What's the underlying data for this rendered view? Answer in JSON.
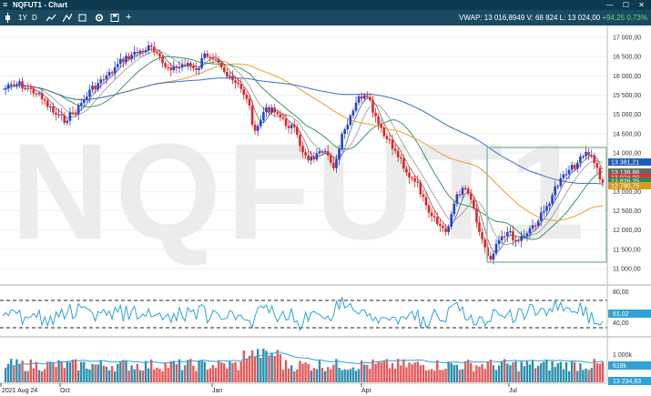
{
  "window": {
    "title": "NQFUT1 - Chart",
    "menu_icon": "hamburger-icon",
    "controls": "— ☐ ✕"
  },
  "toolbar": {
    "range_1y": "1Y",
    "interval_d": "D",
    "icons": [
      "candle-icon",
      "line-chart-icon",
      "drawing-icon",
      "square-icon",
      "settings-icon",
      "save-icon",
      "add-icon"
    ],
    "vwap_label": "VWAP: 13 016,8949",
    "volume_label": "V: 68 824",
    "last_label": "L: 13 024,00",
    "change_abs": "94,25",
    "change_pct": "0,73%"
  },
  "watermark": "NQFUT1",
  "colors": {
    "up": "#2244cc",
    "down": "#e02525",
    "accent_green": "#2e8b57",
    "box": "#8fbf9f"
  },
  "price_axis": {
    "ticks": [
      "17 000,00",
      "16 500,00",
      "16 000,00",
      "15 500,00",
      "15 000,00",
      "14 500,00",
      "14 000,00",
      "13 500,00",
      "13 000,00",
      "12 500,00",
      "12 000,00",
      "11 500,00",
      "11 000,00"
    ],
    "tags": [
      {
        "text": "13 381,21",
        "color": "#1e5bb8"
      },
      {
        "text": "13 138,88",
        "color": "#666666"
      },
      {
        "text": "13 024,00",
        "color": "#e03030"
      },
      {
        "text": "12 826,25",
        "color": "#2e8b57"
      },
      {
        "text": "12 790,75",
        "color": "#d99a20"
      }
    ]
  },
  "rsi_axis": {
    "ticks": [
      "80,00",
      "40,00"
    ],
    "tag": "61,02"
  },
  "volume_axis": {
    "ticks": [
      "1 000k"
    ],
    "tags": [
      "618k",
      "13 234,63"
    ]
  },
  "x_axis": {
    "labels": [
      "2021 Aug 24",
      "Oct",
      "Jan",
      "Apr",
      "Jul"
    ]
  },
  "chart_data": {
    "type": "candlestick",
    "x_labels": [
      "2021 Aug 24",
      "Oct",
      "Jan",
      "Apr",
      "Jul"
    ],
    "ylim": [
      10800,
      17200
    ],
    "overlays": [
      "SMA 5",
      "SMA 10",
      "SMA 20",
      "SMA 50",
      "SMA 100"
    ],
    "last": 13024.0,
    "indicators": [
      {
        "name": "RSI",
        "levels": [
          70,
          30
        ],
        "last": 61.02
      },
      {
        "name": "Volume",
        "last": "618k"
      }
    ]
  }
}
